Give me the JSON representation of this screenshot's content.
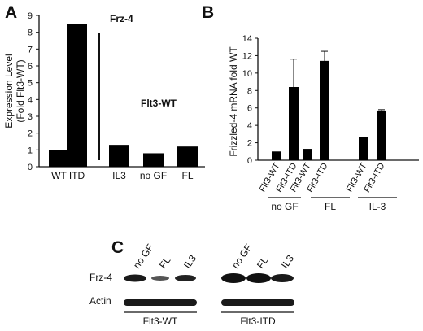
{
  "panels": {
    "a": "A",
    "b": "B",
    "c": "C"
  },
  "chart_data": [
    {
      "type": "bar",
      "panel": "A",
      "ylabel": "Expression Level (Fold Flt3-WT)",
      "ylabel_lines": [
        "Expression Level",
        "(Fold Flt3-WT)"
      ],
      "ylim": [
        0,
        9
      ],
      "yticks": [
        "0",
        "1",
        "2",
        "3",
        "4",
        "5",
        "6",
        "7",
        "8",
        "9"
      ],
      "categories": [
        "WT",
        "ITD",
        "IL3",
        "no GF",
        "FL"
      ],
      "values": [
        1.0,
        8.5,
        1.3,
        0.8,
        1.2
      ],
      "annotations": [
        "Frz-4",
        "Flt3-WT"
      ],
      "grid": false
    },
    {
      "type": "bar",
      "panel": "B",
      "ylabel": "Frizzled-4 mRNA fold WT",
      "ylim": [
        0,
        14
      ],
      "yticks": [
        "0",
        "2",
        "4",
        "6",
        "8",
        "10",
        "12",
        "14"
      ],
      "categories": [
        "Flt3-WT",
        "Flt3-ITD",
        "Flt3-WT",
        "Flt3-ITD",
        "Flt3-WT",
        "Flt3-ITD"
      ],
      "groups": [
        "no GF",
        "FL",
        "IL-3"
      ],
      "values": [
        1.0,
        8.4,
        1.3,
        11.4,
        2.7,
        5.7
      ],
      "errors": [
        0,
        3.2,
        0,
        1.1,
        0,
        0.1
      ],
      "grid": false
    }
  ],
  "blot": {
    "lanes": [
      "no GF",
      "FL",
      "IL3",
      "no GF",
      "FL",
      "IL3"
    ],
    "rows": [
      "Frz-4",
      "Actin"
    ],
    "groups": [
      "Flt3-WT",
      "Flt3-ITD"
    ]
  }
}
